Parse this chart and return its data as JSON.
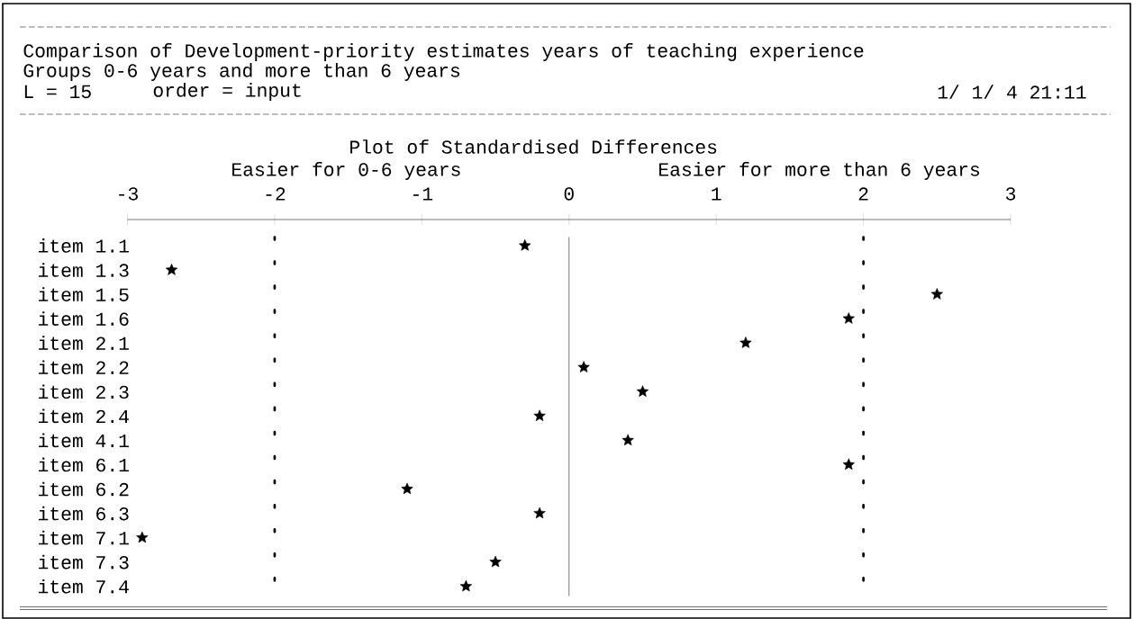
{
  "chart_data": {
    "type": "scatter",
    "title": "Comparison of Development-priority estimates years of teaching experience",
    "subtitle": "Groups 0-6 years and more than 6 years",
    "orientation": "horizontal",
    "marker": "star",
    "categories": [
      "item 1.1",
      "item 1.3",
      "item 1.5",
      "item 1.6",
      "item 2.1",
      "item 2.2",
      "item 2.3",
      "item 2.4",
      "item 4.1",
      "item 6.1",
      "item 6.2",
      "item 6.3",
      "item 7.1",
      "item 7.3",
      "item 7.4"
    ],
    "series": [
      {
        "color": "#000000",
        "values": [
          -0.3,
          -2.7,
          2.5,
          1.9,
          1.2,
          0.1,
          0.5,
          -0.2,
          0.4,
          1.9,
          -1.1,
          -0.2,
          -2.9,
          -0.5,
          -0.7
        ]
      }
    ],
    "xlim": [
      -3,
      3
    ],
    "xticks": [
      -3,
      -2,
      -1,
      0,
      1,
      2,
      3
    ],
    "ref_lines": [
      {
        "axis": "x",
        "value": -2,
        "line_style": "dotted",
        "color": "#000000"
      },
      {
        "axis": "x",
        "value": 0,
        "line_style": "solid",
        "color": "#000000"
      },
      {
        "axis": "x",
        "value": 2,
        "line_style": "dotted",
        "color": "#000000"
      }
    ],
    "annotations": [
      "L = 15",
      "order = input",
      "1/ 1/ 4 21:11",
      "Plot of Standardised Differences",
      "Easier for 0-6 years",
      "Easier for more than 6 years"
    ],
    "grid": false
  }
}
